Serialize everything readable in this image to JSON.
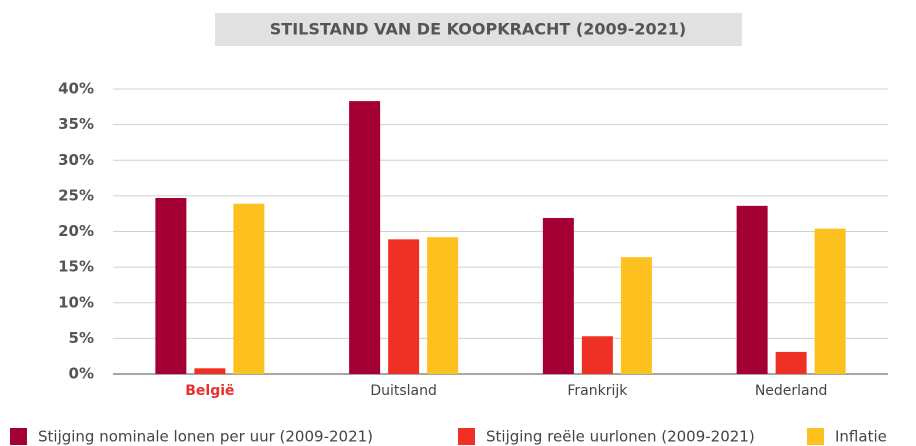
{
  "chart_data": {
    "type": "bar",
    "title": "STILSTAND VAN DE KOOPKRACHT (2009-2021)",
    "categories": [
      "België",
      "Duitsland",
      "Frankrijk",
      "Nederland"
    ],
    "category_colors": [
      "#e8302a",
      "#444444",
      "#444444",
      "#444444"
    ],
    "series": [
      {
        "name": "Stijging nominale lonen per uur (2009-2021)",
        "color": "#a50034",
        "values": [
          24.7,
          38.3,
          21.9,
          23.6
        ]
      },
      {
        "name": "Stijging reële uurlonen (2009-2021)",
        "color": "#ee3124",
        "values": [
          0.8,
          18.9,
          5.3,
          3.1
        ]
      },
      {
        "name": "Inflatie",
        "color": "#fdc11f",
        "values": [
          23.9,
          19.2,
          16.4,
          20.4
        ]
      }
    ],
    "ylim": [
      0,
      40
    ],
    "yticks": [
      {
        "value": 0,
        "label": "0%"
      },
      {
        "value": 5,
        "label": "5%"
      },
      {
        "value": 10,
        "label": "10%"
      },
      {
        "value": 15,
        "label": "15%"
      },
      {
        "value": 20,
        "label": "20%"
      },
      {
        "value": 25,
        "label": "25%"
      },
      {
        "value": 30,
        "label": "30%"
      },
      {
        "value": 35,
        "label": "35%"
      },
      {
        "value": 40,
        "label": "40%"
      }
    ],
    "grid": true,
    "legend": "bottom"
  }
}
